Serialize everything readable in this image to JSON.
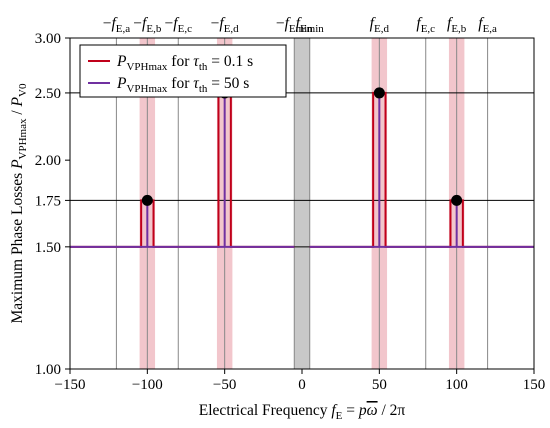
{
  "chart_data": {
    "type": "line",
    "xlabel": {
      "main": "Electrical Frequency ",
      "var": "f",
      "var_sub": "E",
      "eq": " = ",
      "p": "p",
      "omega": "ω",
      "rest": " / 2π"
    },
    "ylabel": {
      "main": "Maximum Phase Losses ",
      "num_var": "P",
      "num_sub": "VPHmax",
      "slash": " / ",
      "den_var": "P",
      "den_sub": "V0"
    },
    "xlim": [
      -150,
      150
    ],
    "ylim": [
      1.0,
      3.0
    ],
    "x_ticks": [
      -150,
      -100,
      -50,
      0,
      50,
      100,
      150
    ],
    "x_tick_labels": [
      "−150",
      "−100",
      "−50",
      "0",
      "50",
      "100",
      "150"
    ],
    "y_ticks": [
      1.0,
      1.5,
      1.75,
      2.0,
      2.5,
      3.0
    ],
    "y_tick_labels": [
      "1.00",
      "1.50",
      "1.75",
      "2.00",
      "2.50",
      "3.00"
    ],
    "y_scale": "log",
    "grid": true,
    "legend_position": "top-left",
    "top_labels": [
      {
        "x": -120,
        "sign": "−",
        "var": "f",
        "sub": "E,a"
      },
      {
        "x": -100,
        "sign": "−",
        "var": "f",
        "sub": "E,b"
      },
      {
        "x": -80,
        "sign": "−",
        "var": "f",
        "sub": "E,c"
      },
      {
        "x": -50,
        "sign": "−",
        "var": "f",
        "sub": "E,d"
      },
      {
        "x": -5,
        "sign": "−",
        "var": "f",
        "sub": "Emin"
      },
      {
        "x": 5,
        "sign": "",
        "var": "f",
        "sub": "Emin"
      },
      {
        "x": 50,
        "sign": "",
        "var": "f",
        "sub": "E,d"
      },
      {
        "x": 80,
        "sign": "",
        "var": "f",
        "sub": "E,c"
      },
      {
        "x": 100,
        "sign": "",
        "var": "f",
        "sub": "E,b"
      },
      {
        "x": 120,
        "sign": "",
        "var": "f",
        "sub": "E,a"
      }
    ],
    "excluded_band": {
      "x": [
        -5,
        5
      ],
      "color": "#c8c8c8"
    },
    "shaded_bands": [
      {
        "x": [
          -105,
          -95
        ]
      },
      {
        "x": [
          -55,
          -45
        ]
      },
      {
        "x": [
          45,
          55
        ]
      },
      {
        "x": [
          95,
          105
        ]
      }
    ],
    "series": [
      {
        "name_var": "P",
        "name_sub": "VPHmax",
        "name_rest": " for ",
        "name_tau": "τ",
        "name_tau_sub": "th",
        "name_value": " = 0.1 s",
        "color": "#c0001a",
        "segments": [
          {
            "x": [
              -150,
              -104,
              -104,
              -96,
              -96,
              -54,
              -54,
              -46,
              -46,
              -5
            ],
            "y": [
              1.5,
              1.5,
              1.75,
              1.75,
              1.5,
              1.5,
              2.5,
              2.5,
              1.5,
              1.5
            ]
          },
          {
            "x": [
              5,
              46,
              46,
              54,
              54,
              96,
              96,
              104,
              104,
              150
            ],
            "y": [
              1.5,
              1.5,
              2.5,
              2.5,
              1.5,
              1.5,
              1.75,
              1.75,
              1.5,
              1.5
            ]
          }
        ]
      },
      {
        "name_var": "P",
        "name_sub": "VPHmax",
        "name_rest": " for ",
        "name_tau": "τ",
        "name_tau_sub": "th",
        "name_value": " = 50 s",
        "color": "#7030a0",
        "segments": [
          {
            "x": [
              -150,
              -100,
              -100,
              -100,
              -50,
              -50,
              -50,
              -5
            ],
            "y": [
              1.5,
              1.5,
              1.75,
              1.5,
              1.5,
              2.5,
              1.5,
              1.5
            ]
          },
          {
            "x": [
              5,
              50,
              50,
              50,
              100,
              100,
              100,
              150
            ],
            "y": [
              1.5,
              1.5,
              2.5,
              1.5,
              1.5,
              1.75,
              1.5,
              1.5
            ]
          }
        ]
      }
    ],
    "points": [
      {
        "x": -100,
        "y": 1.75
      },
      {
        "x": -50,
        "y": 2.5
      },
      {
        "x": 50,
        "y": 2.5
      },
      {
        "x": 100,
        "y": 1.75
      }
    ],
    "hlines": [
      1.5,
      1.75,
      2.5,
      3.0
    ]
  }
}
